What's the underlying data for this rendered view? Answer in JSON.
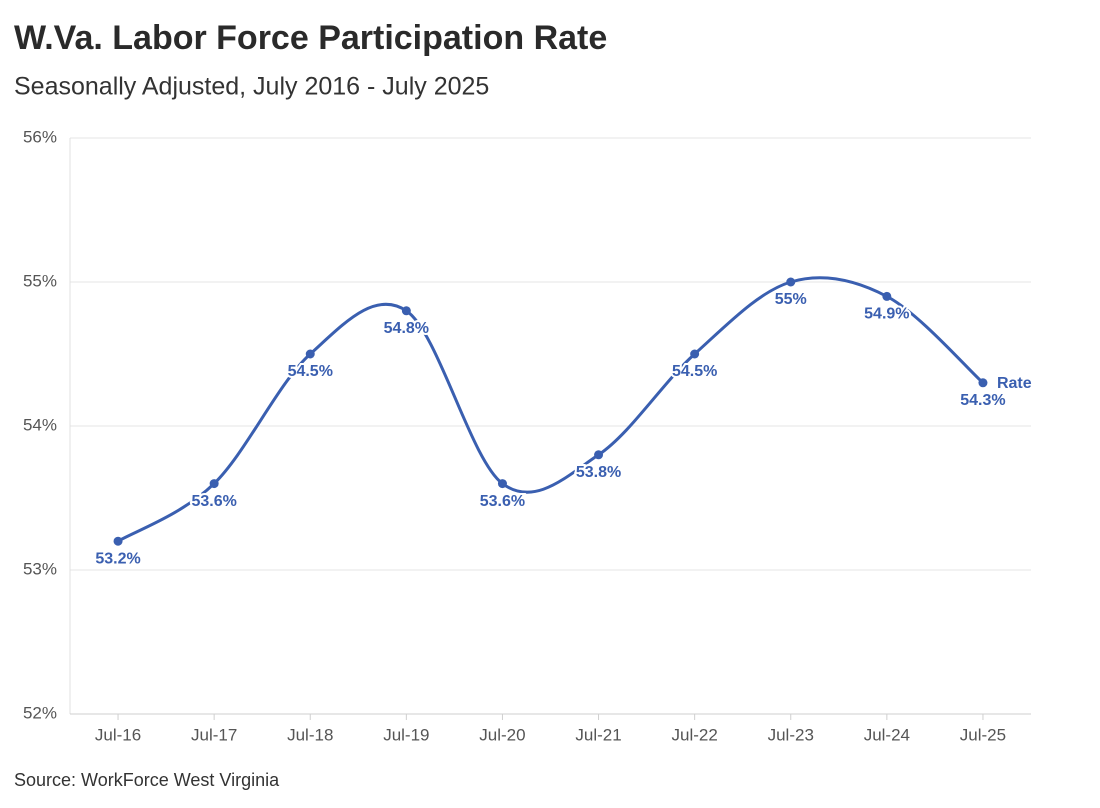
{
  "chart_data": {
    "type": "line",
    "title": "W.Va. Labor Force Participation Rate",
    "subtitle": "Seasonally Adjusted, July 2016 - July 2025",
    "source": "Source: WorkForce West Virginia",
    "categories": [
      "Jul-16",
      "Jul-17",
      "Jul-18",
      "Jul-19",
      "Jul-20",
      "Jul-21",
      "Jul-22",
      "Jul-23",
      "Jul-24",
      "Jul-25"
    ],
    "series": [
      {
        "name": "Rate",
        "color": "#3a5fb0",
        "values": [
          53.2,
          53.6,
          54.5,
          54.8,
          53.6,
          53.8,
          54.5,
          55,
          54.9,
          54.3
        ],
        "value_labels": [
          "53.2%",
          "53.6%",
          "54.5%",
          "54.8%",
          "53.6%",
          "53.8%",
          "54.5%",
          "55%",
          "54.9%",
          "54.3%"
        ]
      }
    ],
    "ylim": [
      52,
      56
    ],
    "yticks": [
      {
        "value": 52,
        "label": "52%"
      },
      {
        "value": 53,
        "label": "53%"
      },
      {
        "value": 54,
        "label": "54%"
      },
      {
        "value": 55,
        "label": "55%"
      },
      {
        "value": 56,
        "label": "56%"
      }
    ],
    "grid": true,
    "smooth": true
  }
}
